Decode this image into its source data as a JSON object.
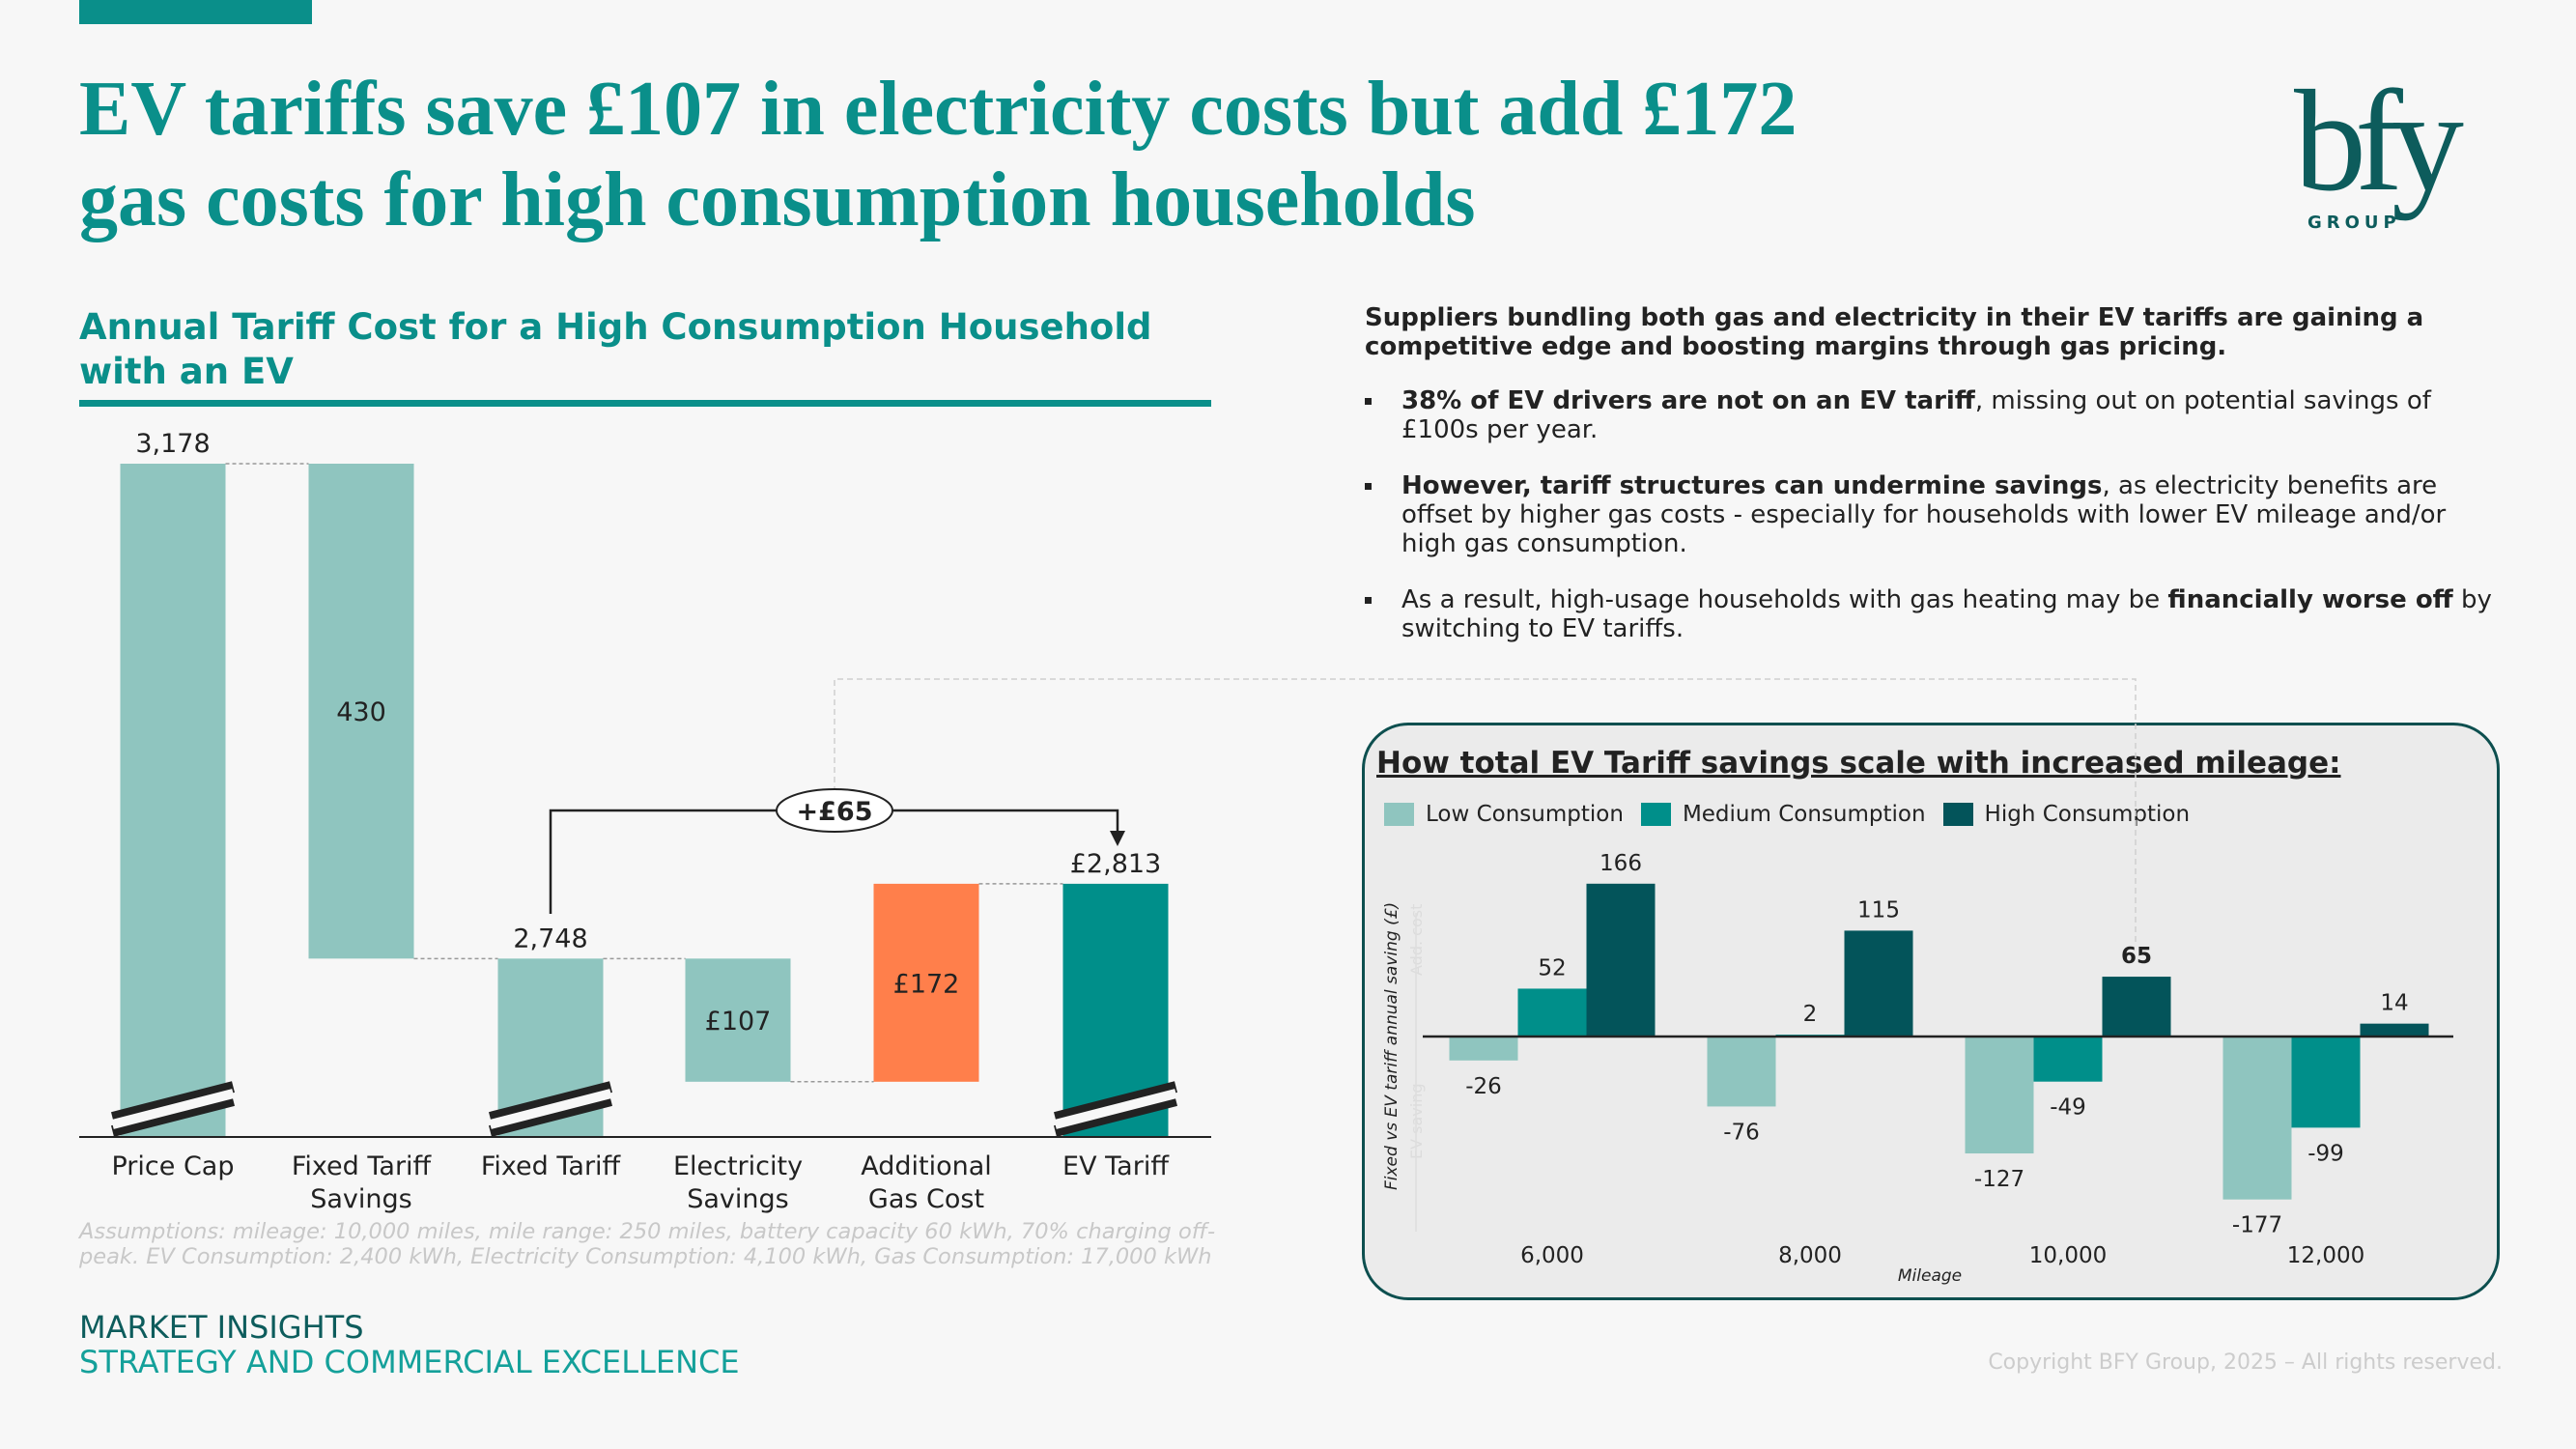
{
  "header": {
    "title_line1": "EV tariffs save £107 in electricity costs but add £172",
    "title_line2": "gas costs for high consumption households",
    "logo_text": "bfy GROUP"
  },
  "left": {
    "subtitle": "Annual Tariff Cost for a High Consumption Household with an EV",
    "assumptions": "Assumptions: mileage: 10,000 miles, mile range: 250 miles, battery capacity 60 kWh, 70% charging off-peak. EV Consumption: 2,400 kWh, Electricity Consumption: 4,100 kWh, Gas Consumption: 17,000 kWh"
  },
  "right": {
    "lead": "Suppliers bundling both gas and electricity in their EV tariffs are gaining a competitive edge and boosting margins through gas pricing.",
    "bullets": [
      {
        "bold": "38% of EV drivers are not on an EV tariff",
        "rest": ", missing out on potential savings of £100s per year.",
        "pre": ""
      },
      {
        "bold": "However, tariff structures can undermine savings",
        "rest": ", as electricity benefits are offset by higher gas costs - especially for households with lower EV mileage and/or high gas consumption.",
        "pre": ""
      },
      {
        "pre": "As a result, high-usage households with gas heating may be ",
        "bold": "financially worse off",
        "rest": " by switching to EV tariffs."
      }
    ]
  },
  "footer": {
    "line1": "MARKET INSIGHTS",
    "line2": "STRATEGY AND COMMERCIAL EXCELLENCE",
    "copyright": "Copyright BFY Group, 2025 – All rights reserved."
  },
  "colors": {
    "teal": "#0a8f8a",
    "light": "#8fc5bf",
    "medium": "#008f8a",
    "dark": "#03545a",
    "orange": "#ff7f4b",
    "panel_border": "#0d4f4f"
  },
  "chart_data": [
    {
      "type": "waterfall",
      "title": "Annual Tariff Cost for a High Consumption Household with an EV",
      "categories": [
        "Price Cap",
        "Fixed Tariff\nSavings",
        "Fixed Tariff",
        "Electricity\nSavings",
        "Additional\nGas Cost",
        "EV Tariff"
      ],
      "category_lines": [
        [
          "Price Cap"
        ],
        [
          "Fixed Tariff",
          "Savings"
        ],
        [
          "Fixed Tariff"
        ],
        [
          "Electricity",
          "Savings"
        ],
        [
          "Additional",
          "Gas Cost"
        ],
        [
          "EV Tariff"
        ]
      ],
      "values": [
        3178,
        -430,
        2748,
        -107,
        172,
        2813
      ],
      "kinds": [
        "total",
        "delta",
        "total",
        "delta",
        "delta",
        "total"
      ],
      "labels": [
        "3,178",
        "430",
        "2,748",
        "£107",
        "£172",
        "£2,813"
      ],
      "bar_colors": [
        "#8fc5bf",
        "#8fc5bf",
        "#8fc5bf",
        "#8fc5bf",
        "#ff7f4b",
        "#008f8a"
      ],
      "axis_break": true,
      "ylim": [
        2593,
        3178
      ],
      "annotation": "+£65"
    },
    {
      "type": "bar",
      "title": "How total EV Tariff savings scale with increased mileage:",
      "xlabel": "Mileage",
      "ylabel": "Fixed vs EV tariff annual saving (£)",
      "faint_annotations": [
        "EV saving",
        "Add. cost"
      ],
      "categories": [
        "6,000",
        "8,000",
        "10,000",
        "12,000"
      ],
      "legend": "top-left",
      "series": [
        {
          "name": "Low Consumption",
          "color": "#8fc5bf",
          "values": [
            -26,
            -76,
            -127,
            -177
          ]
        },
        {
          "name": "Medium Consumption",
          "color": "#008f8a",
          "values": [
            52,
            2,
            -49,
            -99
          ]
        },
        {
          "name": "High Consumption",
          "color": "#03545a",
          "values": [
            166,
            115,
            65,
            14
          ]
        }
      ],
      "highlight": {
        "series": 2,
        "index": 2
      }
    }
  ]
}
